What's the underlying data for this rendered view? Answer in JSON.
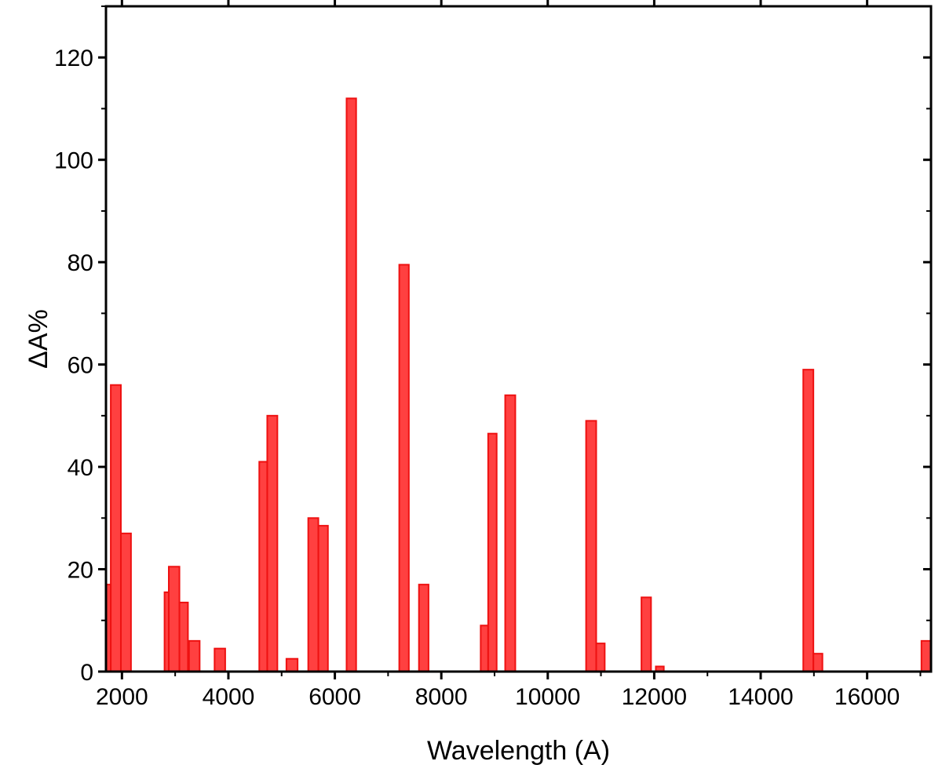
{
  "chart_data": {
    "type": "bar",
    "title": "",
    "xlabel": "Wavelength (A)",
    "ylabel": "ΔA%",
    "xlim": [
      1700,
      17200
    ],
    "ylim": [
      0,
      130
    ],
    "xticks": [
      2000,
      4000,
      6000,
      8000,
      10000,
      12000,
      14000,
      16000
    ],
    "yticks": [
      0,
      20,
      40,
      60,
      80,
      100,
      120
    ],
    "grid": false,
    "legend": "none",
    "bar_color": "#ff3030",
    "bars": [
      {
        "x0": 1700,
        "x1": 1790,
        "value": 17
      },
      {
        "x0": 1790,
        "x1": 1980,
        "value": 56
      },
      {
        "x0": 1980,
        "x1": 2170,
        "value": 27
      },
      {
        "x0": 2800,
        "x1": 2880,
        "value": 15.5
      },
      {
        "x0": 2880,
        "x1": 3080,
        "value": 20.5
      },
      {
        "x0": 3080,
        "x1": 3240,
        "value": 13.5
      },
      {
        "x0": 3260,
        "x1": 3460,
        "value": 6
      },
      {
        "x0": 3740,
        "x1": 3940,
        "value": 4.5
      },
      {
        "x0": 4580,
        "x1": 4730,
        "value": 41
      },
      {
        "x0": 4730,
        "x1": 4920,
        "value": 50
      },
      {
        "x0": 5090,
        "x1": 5300,
        "value": 2.5
      },
      {
        "x0": 5500,
        "x1": 5690,
        "value": 30
      },
      {
        "x0": 5690,
        "x1": 5870,
        "value": 28.5
      },
      {
        "x0": 6220,
        "x1": 6400,
        "value": 112
      },
      {
        "x0": 7210,
        "x1": 7390,
        "value": 79.5
      },
      {
        "x0": 7580,
        "x1": 7760,
        "value": 17
      },
      {
        "x0": 8740,
        "x1": 8880,
        "value": 9
      },
      {
        "x0": 8880,
        "x1": 9040,
        "value": 46.5
      },
      {
        "x0": 9200,
        "x1": 9390,
        "value": 54
      },
      {
        "x0": 10720,
        "x1": 10910,
        "value": 49
      },
      {
        "x0": 10910,
        "x1": 11070,
        "value": 5.5
      },
      {
        "x0": 11760,
        "x1": 11940,
        "value": 14.5
      },
      {
        "x0": 12030,
        "x1": 12180,
        "value": 1
      },
      {
        "x0": 14800,
        "x1": 14990,
        "value": 59
      },
      {
        "x0": 14990,
        "x1": 15160,
        "value": 3.5
      },
      {
        "x0": 17020,
        "x1": 17200,
        "value": 6
      }
    ]
  }
}
